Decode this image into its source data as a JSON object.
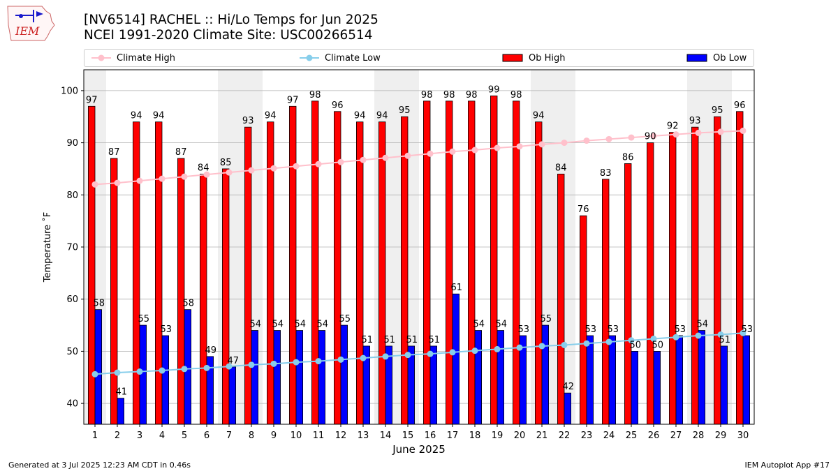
{
  "header": {
    "logo_text": "IEM",
    "title_line1": "[NV6514] RACHEL :: Hi/Lo Temps for Jun 2025",
    "title_line2": "NCEI 1991-2020 Climate Site: USC00266514"
  },
  "legend": {
    "climate_high": "Climate High",
    "climate_low": "Climate Low",
    "ob_high": "Ob High",
    "ob_low": "Ob Low"
  },
  "footer": {
    "generated": "Generated at 3 Jul 2025 12:23 AM CDT in 0.46s",
    "app": "IEM Autoplot App #17"
  },
  "chart_data": {
    "type": "bar",
    "xlabel": "June 2025",
    "ylabel": "Temperature ˚F",
    "ylim": [
      36,
      104
    ],
    "yticks": [
      40,
      50,
      60,
      70,
      80,
      90,
      100
    ],
    "grid": true,
    "weekend_shading": [
      1,
      7,
      8,
      14,
      15,
      21,
      22,
      28,
      29
    ],
    "days": [
      1,
      2,
      3,
      4,
      5,
      6,
      7,
      8,
      9,
      10,
      11,
      12,
      13,
      14,
      15,
      16,
      17,
      18,
      19,
      20,
      21,
      22,
      23,
      24,
      25,
      26,
      27,
      28,
      29,
      30
    ],
    "series": [
      {
        "name": "Ob High",
        "kind": "bar",
        "color": "#ff0000",
        "values": [
          97,
          87,
          94,
          94,
          87,
          84,
          85,
          93,
          94,
          97,
          98,
          96,
          94,
          94,
          95,
          98,
          98,
          98,
          99,
          98,
          94,
          84,
          76,
          83,
          86,
          90,
          92,
          93,
          95,
          96
        ]
      },
      {
        "name": "Ob Low",
        "kind": "bar",
        "color": "#0000ff",
        "values": [
          58,
          41,
          55,
          53,
          58,
          49,
          47,
          54,
          54,
          54,
          54,
          55,
          51,
          51,
          51,
          51,
          61,
          54,
          54,
          53,
          55,
          42,
          53,
          53,
          50,
          50,
          53,
          54,
          51,
          53
        ]
      },
      {
        "name": "Climate High",
        "kind": "line",
        "color": "#ffc0cb",
        "values": [
          82.0,
          82.3,
          82.7,
          83.1,
          83.5,
          83.9,
          84.3,
          84.7,
          85.1,
          85.5,
          85.9,
          86.3,
          86.7,
          87.1,
          87.5,
          87.9,
          88.3,
          88.6,
          89.0,
          89.3,
          89.7,
          90.0,
          90.4,
          90.7,
          91.0,
          91.3,
          91.6,
          91.9,
          92.1,
          92.3
        ]
      },
      {
        "name": "Climate Low",
        "kind": "line",
        "color": "#87ceeb",
        "values": [
          45.6,
          45.9,
          46.1,
          46.3,
          46.6,
          46.8,
          47.1,
          47.4,
          47.6,
          47.9,
          48.1,
          48.4,
          48.7,
          49.0,
          49.3,
          49.5,
          49.8,
          50.1,
          50.4,
          50.7,
          51.0,
          51.2,
          51.5,
          51.8,
          52.1,
          52.4,
          52.7,
          53.0,
          53.2,
          53.5
        ]
      }
    ]
  }
}
